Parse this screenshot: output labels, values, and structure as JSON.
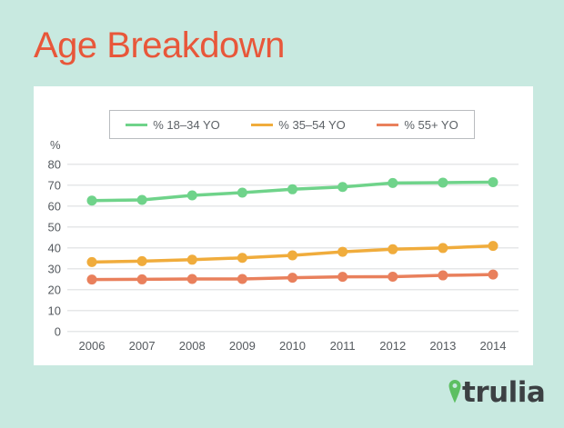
{
  "title": "Age Breakdown",
  "logo": "trulia",
  "chart_data": {
    "type": "line",
    "title": "Age Breakdown",
    "ylabel": "%",
    "xlabel": "",
    "ylim": [
      0,
      80
    ],
    "yticks": [
      0,
      10,
      20,
      30,
      40,
      50,
      60,
      70,
      80
    ],
    "grid": true,
    "legend_position": "top",
    "categories": [
      "2006",
      "2007",
      "2008",
      "2009",
      "2010",
      "2011",
      "2012",
      "2013",
      "2014"
    ],
    "series": [
      {
        "name": "% 18–34 YO",
        "color": "#6fd38a",
        "values": [
          62.6,
          62.9,
          65.1,
          66.4,
          68.0,
          69.1,
          71.0,
          71.2,
          71.4
        ]
      },
      {
        "name": "% 35–54 YO",
        "color": "#f0ac3c",
        "values": [
          33.2,
          33.6,
          34.3,
          35.2,
          36.4,
          38.1,
          39.3,
          39.9,
          40.9
        ]
      },
      {
        "name": "% 55+ YO",
        "color": "#e9805c",
        "values": [
          24.8,
          24.9,
          25.1,
          25.1,
          25.7,
          26.1,
          26.2,
          26.8,
          27.2
        ]
      }
    ]
  }
}
